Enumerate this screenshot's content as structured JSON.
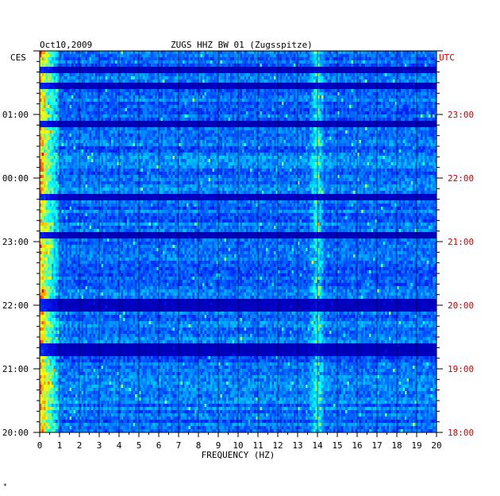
{
  "header": {
    "date": "Oct10,2009",
    "station": "ZUGS HHZ BW 01 (Zugsspitze)"
  },
  "left_axis_title": "CES",
  "right_axis_title": "UTC",
  "footer_mark": "*",
  "colors": {
    "background_low": "#0000b4",
    "mid": "#0050ff",
    "high_cyan": "#00e0ff",
    "peak_yellow": "#ffff00",
    "peak_red": "#ff0000",
    "utc_label": "#cc0000"
  },
  "chart_data": {
    "type": "heatmap",
    "title": "ZUGS HHZ BW 01 (Zugsspitze)",
    "date": "Oct10,2009",
    "xlabel": "FREQUENCY (HZ)",
    "x_ticks": [
      "0",
      "1",
      "2",
      "3",
      "4",
      "5",
      "6",
      "7",
      "8",
      "9",
      "10",
      "11",
      "12",
      "13",
      "14",
      "15",
      "16",
      "17",
      "18",
      "19",
      "20"
    ],
    "xlim": [
      0,
      20
    ],
    "left_time_labels": [
      "01:00",
      "00:00",
      "23:00",
      "22:00",
      "21:00",
      "20:00"
    ],
    "right_time_labels": [
      "23:00",
      "22:00",
      "21:00",
      "20:00",
      "19:00",
      "18:00"
    ],
    "left_zone": "CES",
    "right_zone": "UTC",
    "hours_span": 6,
    "grid": true,
    "features": [
      {
        "name": "low-frequency energy",
        "freq_range_hz": [
          0,
          1
        ]
      },
      {
        "name": "persistent line",
        "freq_hz": 14
      }
    ],
    "dark_rows_hours_from_top": [
      0.3,
      0.55,
      1.15,
      2.3,
      2.9,
      3.95,
      4.05,
      4.65,
      4.75
    ]
  }
}
